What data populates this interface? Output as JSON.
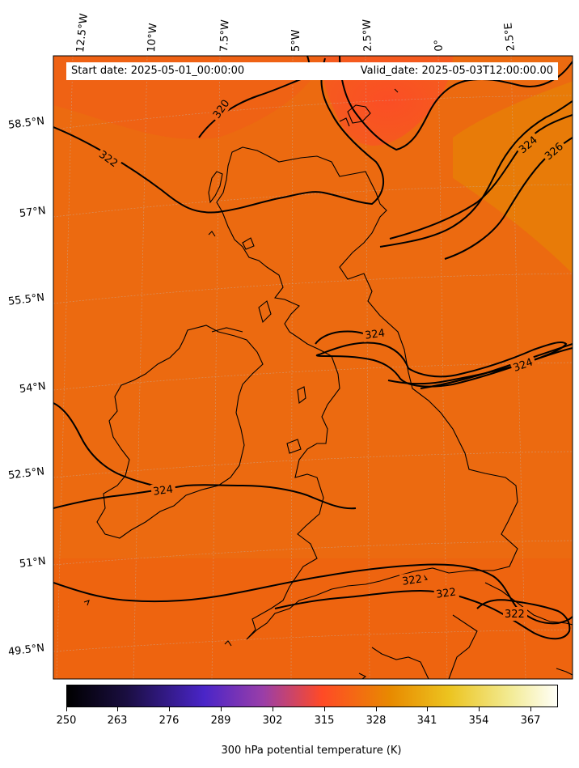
{
  "header": {
    "start_date": "Start date: 2025-05-01_00:00:00",
    "valid_date": "Valid_date: 2025-05-03T12:00:00.00"
  },
  "map": {
    "longitude_labels": [
      "12.5°W",
      "10°W",
      "7.5°W",
      "5°W",
      "2.5°W",
      "0°",
      "2.5°E"
    ],
    "latitude_labels": [
      "58.5°N",
      "57°N",
      "55.5°N",
      "54°N",
      "52.5°N",
      "51°N",
      "49.5°N"
    ],
    "contour_labels": [
      "320",
      "322",
      "324",
      "326",
      "324",
      "324",
      "324",
      "322",
      "322",
      "322"
    ],
    "field_color": "#ec6a10",
    "contour_color": "#000000"
  },
  "colorbar": {
    "ticks": [
      "250",
      "263",
      "276",
      "289",
      "302",
      "315",
      "328",
      "341",
      "354",
      "367"
    ],
    "title": "300 hPa potential temperature (K)",
    "colors": [
      "#000000",
      "#2a1060",
      "#4d25c8",
      "#b04a80",
      "#ff4a26",
      "#e8a000",
      "#f0e060",
      "#fffff0"
    ]
  }
}
